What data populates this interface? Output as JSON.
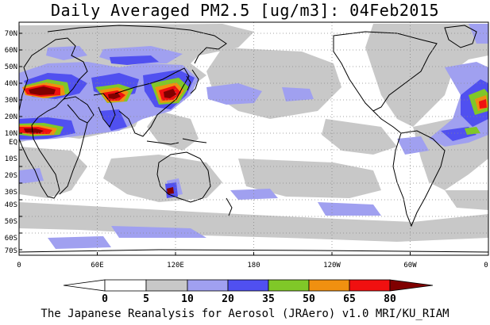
{
  "title": "Daily Averaged PM2.5 [ug/m3]: 04Feb2015",
  "footer": "The Japanese Reanalysis for Aerosol (JRAero) v1.0 MRI/KU_RIAM",
  "axes": {
    "lat_labels": [
      "70N",
      "60N",
      "50N",
      "40N",
      "30N",
      "20N",
      "10N",
      "EQ",
      "10S",
      "20S",
      "30S",
      "40S",
      "50S",
      "60S",
      "70S"
    ],
    "lon_labels": [
      "0",
      "60E",
      "120E",
      "180",
      "120W",
      "60W",
      "0"
    ]
  },
  "colorbar": {
    "ticks": [
      "0",
      "5",
      "10",
      "20",
      "35",
      "50",
      "65",
      "80"
    ],
    "colors": [
      "#ffffff",
      "#c8c8c8",
      "#a0a0f0",
      "#5050f0",
      "#80c828",
      "#f09010",
      "#f01010",
      "#800000"
    ]
  }
}
